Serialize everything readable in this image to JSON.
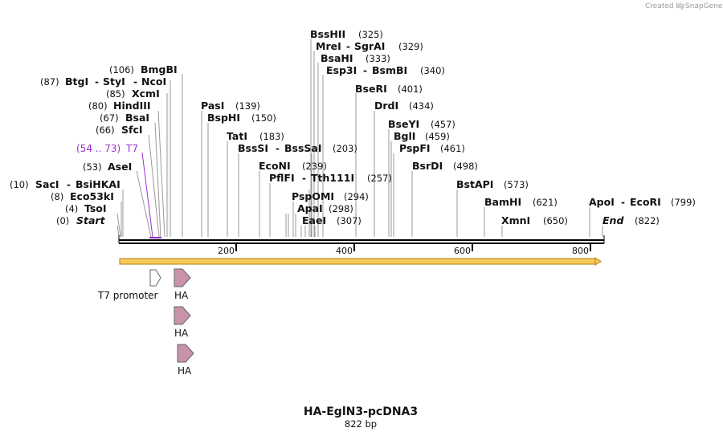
{
  "map": {
    "title": "HA-EglN3-pcDNA3",
    "length_label": "822 bp",
    "length": 822,
    "watermark": "Created by",
    "brand": "SnapGene"
  },
  "ticks": [
    "200",
    "400",
    "600",
    "800"
  ],
  "primer": {
    "name": "T7",
    "range": "(54 .. 73)",
    "start": 54,
    "end": 73,
    "color": "#9a2fc9"
  },
  "features": [
    {
      "name": "T7 promoter",
      "type": "promoter",
      "color": "#ffffff"
    },
    {
      "name": "HA",
      "type": "tag",
      "color": "#c893aa"
    },
    {
      "name": "HA",
      "type": "tag",
      "color": "#c893aa"
    },
    {
      "name": "HA",
      "type": "tag",
      "color": "#c893aa"
    }
  ],
  "site_groups": [
    {
      "names": [
        "BssHII"
      ],
      "pos_label": "(325)"
    },
    {
      "names": [
        "MreI",
        "SgrAI"
      ],
      "pos_label": "(329)"
    },
    {
      "names": [
        "BsaHI"
      ],
      "pos_label": "(333)"
    },
    {
      "names": [
        "Esp3I",
        "BsmBI"
      ],
      "pos_label": "(340)"
    },
    {
      "names": [
        "BseRI"
      ],
      "pos_label": "(401)"
    },
    {
      "names": [
        "BmgBI"
      ],
      "pos_label": "(106)"
    },
    {
      "names": [
        "BtgI",
        "StyI",
        "NcoI"
      ],
      "pos_label": "(87)"
    },
    {
      "names": [
        "XcmI"
      ],
      "pos_label": "(85)"
    },
    {
      "names": [
        "HindIII"
      ],
      "pos_label": "(80)"
    },
    {
      "names": [
        "BsaI"
      ],
      "pos_label": "(67)"
    },
    {
      "names": [
        "SfcI"
      ],
      "pos_label": "(66)"
    },
    {
      "names": [
        "AseI"
      ],
      "pos_label": "(53)"
    },
    {
      "names": [
        "SacI",
        "BsiHKAI"
      ],
      "pos_label": "(10)"
    },
    {
      "names": [
        "Eco53kI"
      ],
      "pos_label": "(8)"
    },
    {
      "names": [
        "TsoI"
      ],
      "pos_label": "(4)"
    },
    {
      "names": [
        "Start"
      ],
      "pos_label": "(0)",
      "italic": true
    },
    {
      "names": [
        "PasI"
      ],
      "pos_label": "(139)"
    },
    {
      "names": [
        "BspHI"
      ],
      "pos_label": "(150)"
    },
    {
      "names": [
        "TatI"
      ],
      "pos_label": "(183)"
    },
    {
      "names": [
        "BssSI",
        "BssSaI"
      ],
      "pos_label": "(203)"
    },
    {
      "names": [
        "EcoNI"
      ],
      "pos_label": "(239)"
    },
    {
      "names": [
        "PflFI",
        "Tth111I"
      ],
      "pos_label": "(257)"
    },
    {
      "names": [
        "PspOMI"
      ],
      "pos_label": "(294)"
    },
    {
      "names": [
        "ApaI"
      ],
      "pos_label": "(298)"
    },
    {
      "names": [
        "EaeI"
      ],
      "pos_label": "(307)"
    },
    {
      "names": [
        "DrdI"
      ],
      "pos_label": "(434)"
    },
    {
      "names": [
        "BseYI"
      ],
      "pos_label": "(457)"
    },
    {
      "names": [
        "BglI"
      ],
      "pos_label": "(459)"
    },
    {
      "names": [
        "PspFI"
      ],
      "pos_label": "(461)"
    },
    {
      "names": [
        "BsrDI"
      ],
      "pos_label": "(498)"
    },
    {
      "names": [
        "BstAPI"
      ],
      "pos_label": "(573)"
    },
    {
      "names": [
        "BamHI"
      ],
      "pos_label": "(621)"
    },
    {
      "names": [
        "XmnI"
      ],
      "pos_label": "(650)"
    },
    {
      "names": [
        "ApoI",
        "EcoRI"
      ],
      "pos_label": "(799)"
    },
    {
      "names": [
        "End"
      ],
      "pos_label": "(822)",
      "italic": true
    }
  ]
}
